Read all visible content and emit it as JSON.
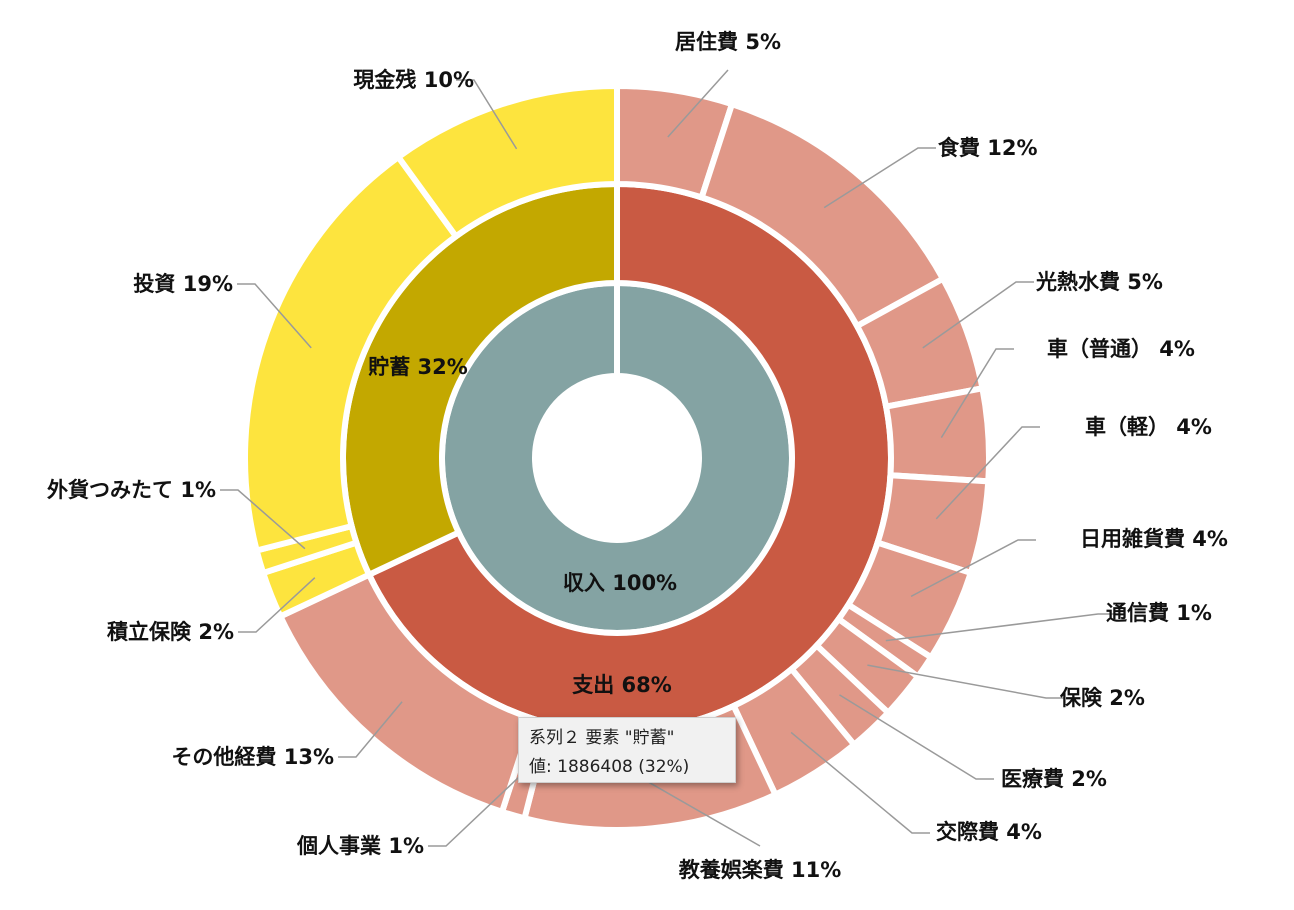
{
  "chart_data": {
    "type": "sunburst",
    "rings": [
      {
        "ring": "inner",
        "segments": [
          {
            "name": "収入",
            "label": "収入 100%",
            "value": 100,
            "color": "#84A3A3"
          }
        ]
      },
      {
        "ring": "middle",
        "segments": [
          {
            "name": "支出",
            "label": "支出 68%",
            "value": 68,
            "color": "#C95A43"
          },
          {
            "name": "貯蓄",
            "label": "貯蓄 32%",
            "value": 32,
            "color": "#C3A800"
          }
        ]
      },
      {
        "ring": "outer",
        "segments": [
          {
            "name": "居住費",
            "label": "居住費 5%",
            "value": 5,
            "parent": "支出",
            "color": "#E09888"
          },
          {
            "name": "食費",
            "label": "食費 12%",
            "value": 12,
            "parent": "支出",
            "color": "#E09888"
          },
          {
            "name": "光熱水費",
            "label": "光熱水費 5%",
            "value": 5,
            "parent": "支出",
            "color": "#E09888"
          },
          {
            "name": "車（普通）",
            "label": "車（普通） 4%",
            "value": 4,
            "parent": "支出",
            "color": "#E09888"
          },
          {
            "name": "車（軽）",
            "label": "車（軽） 4%",
            "value": 4,
            "parent": "支出",
            "color": "#E09888"
          },
          {
            "name": "日用雑貨費",
            "label": "日用雑貨費 4%",
            "value": 4,
            "parent": "支出",
            "color": "#E09888"
          },
          {
            "name": "通信費",
            "label": "通信費 1%",
            "value": 1,
            "parent": "支出",
            "color": "#E09888"
          },
          {
            "name": "保険",
            "label": "保険 2%",
            "value": 2,
            "parent": "支出",
            "color": "#E09888"
          },
          {
            "name": "医療費",
            "label": "医療費 2%",
            "value": 2,
            "parent": "支出",
            "color": "#E09888"
          },
          {
            "name": "交際費",
            "label": "交際費 4%",
            "value": 4,
            "parent": "支出",
            "color": "#E09888"
          },
          {
            "name": "教養娯楽費",
            "label": "教養娯楽費 11%",
            "value": 11,
            "parent": "支出",
            "color": "#E09888"
          },
          {
            "name": "個人事業",
            "label": "個人事業 1%",
            "value": 1,
            "parent": "支出",
            "color": "#E09888"
          },
          {
            "name": "その他経費",
            "label": "その他経費 13%",
            "value": 13,
            "parent": "支出",
            "color": "#E09888"
          },
          {
            "name": "積立保険",
            "label": "積立保険 2%",
            "value": 2,
            "parent": "貯蓄",
            "color": "#FDE43E"
          },
          {
            "name": "外貨つみたて",
            "label": "外貨つみたて 1%",
            "value": 1,
            "parent": "貯蓄",
            "color": "#FDE43E"
          },
          {
            "name": "投資",
            "label": "投資 19%",
            "value": 19,
            "parent": "貯蓄",
            "color": "#FDE43E"
          },
          {
            "name": "現金残",
            "label": "現金残 10%",
            "value": 10,
            "parent": "貯蓄",
            "color": "#FDE43E"
          }
        ]
      }
    ],
    "tooltip": {
      "line1": "系列２ 要素 \"貯蓄\"",
      "line2": "値: 1886408 (32%)"
    }
  }
}
